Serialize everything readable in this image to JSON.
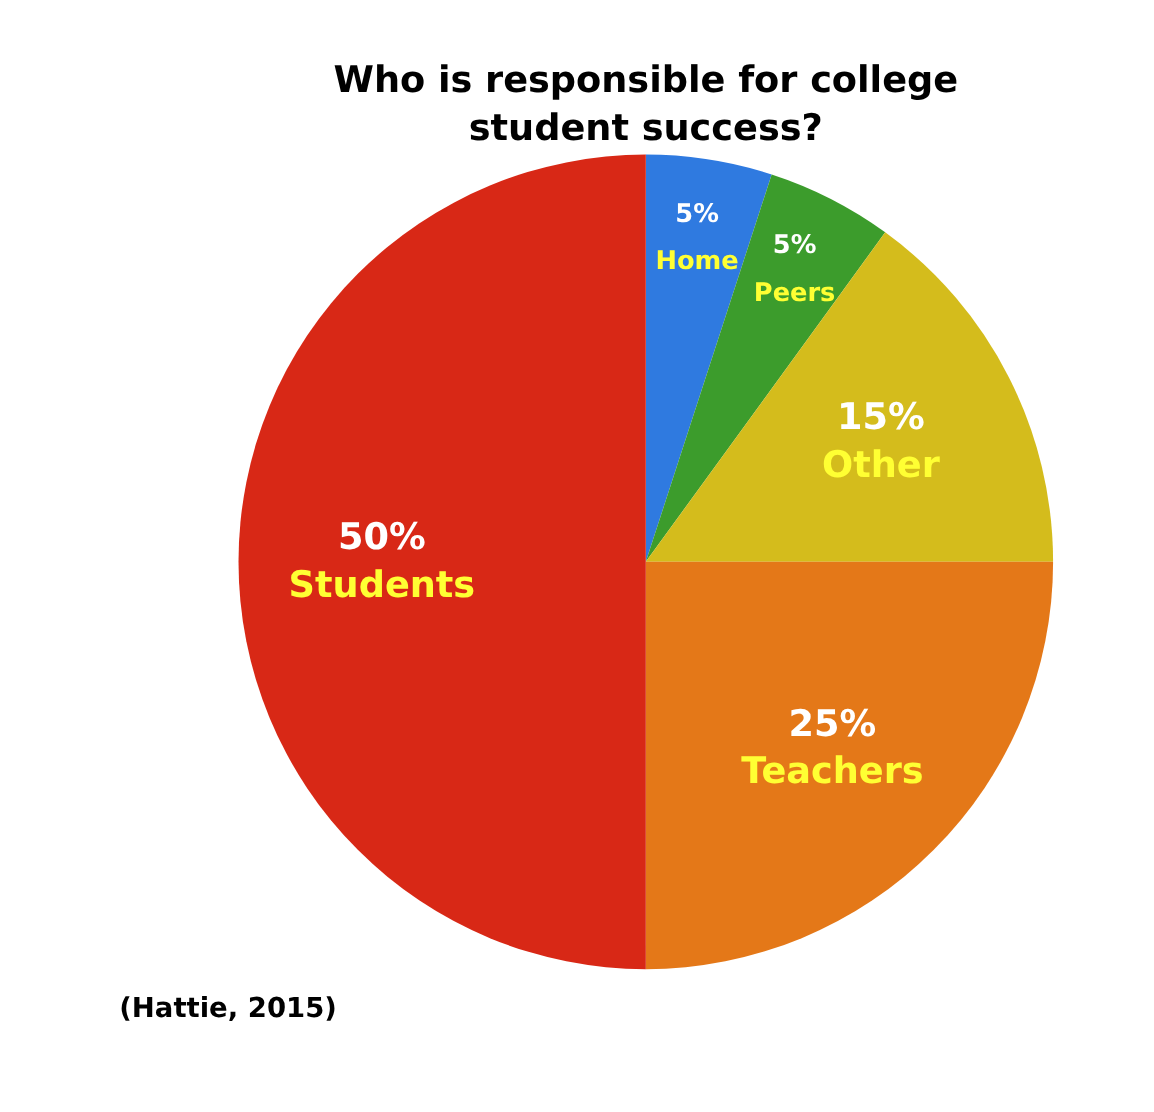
{
  "chart_data": {
    "type": "pie",
    "title": "Who is responsible for college student success?",
    "categories": [
      "Home",
      "Peers",
      "Other",
      "Teachers",
      "Students"
    ],
    "values": [
      5,
      5,
      15,
      25,
      50
    ],
    "value_labels": [
      "5%",
      "5%",
      "15%",
      "25%",
      "50%"
    ],
    "colors": [
      "#2f7ae0",
      "#3c9c2c",
      "#d4bc1c",
      "#e47818",
      "#d82816"
    ],
    "legend": false,
    "annotations": [
      "(Hattie, 2015)"
    ]
  }
}
